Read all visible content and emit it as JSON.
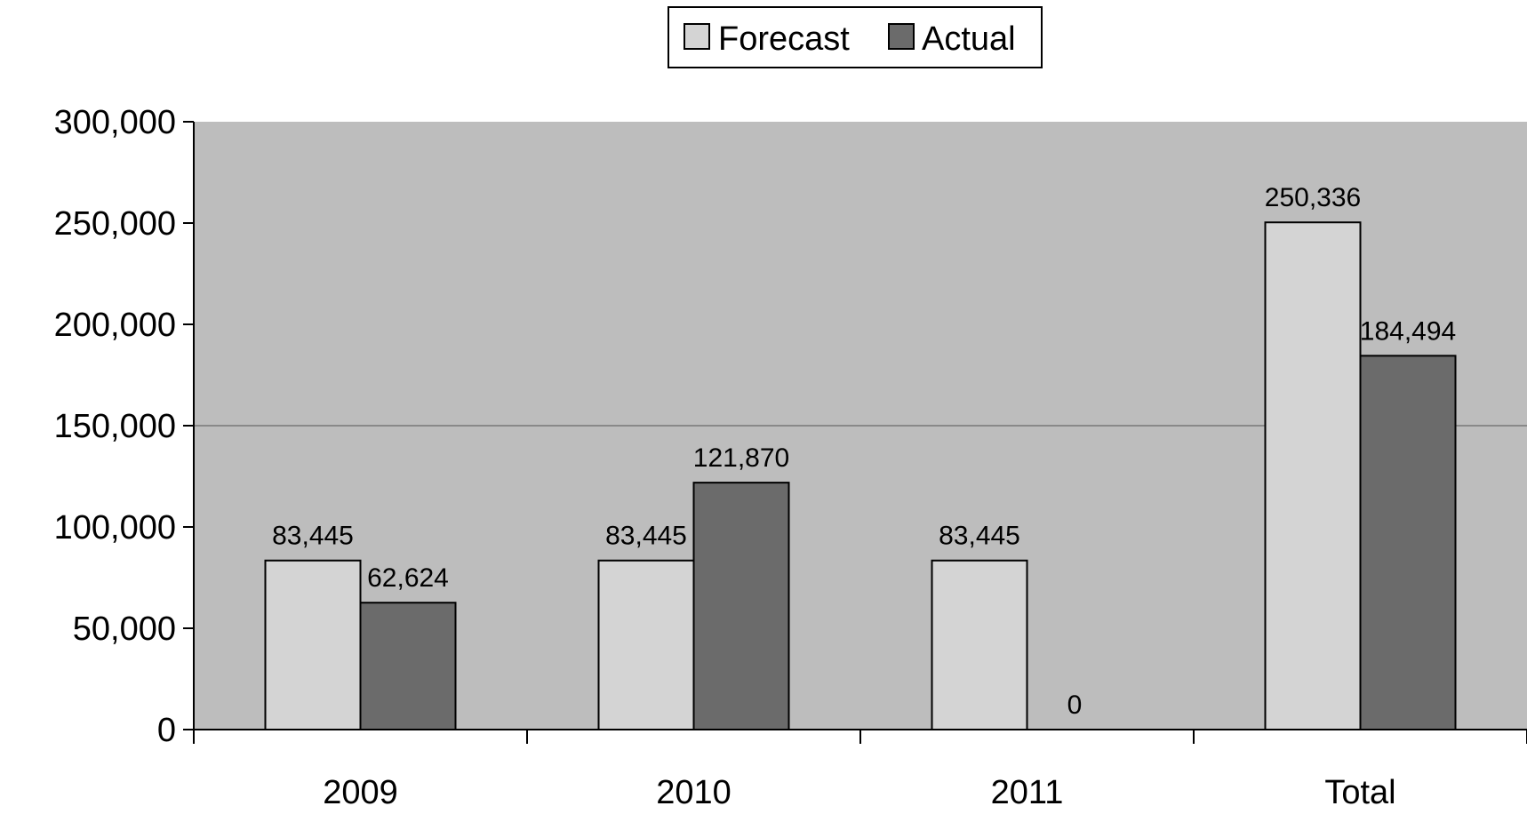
{
  "chart_data": {
    "type": "bar",
    "title": "",
    "xlabel": "",
    "ylabel": "",
    "categories": [
      "2009",
      "2010",
      "2011",
      "Total"
    ],
    "series": [
      {
        "name": "Forecast",
        "values": [
          83445,
          83445,
          83445,
          250336
        ],
        "labels": [
          "83,445",
          "83,445",
          "83,445",
          "250,336"
        ],
        "color": "#d4d4d4"
      },
      {
        "name": "Actual",
        "values": [
          62624,
          121870,
          0,
          184494
        ],
        "labels": [
          "62,624",
          "121,870",
          "0",
          "184,494"
        ],
        "color": "#6b6b6b"
      }
    ],
    "ylim": [
      0,
      300000
    ],
    "yticks": [
      0,
      50000,
      100000,
      150000,
      200000,
      250000,
      300000
    ],
    "ytick_labels": [
      "0",
      "50,000",
      "100,000",
      "150,000",
      "200,000",
      "250,000",
      "300,000"
    ],
    "gridlines": [
      150000
    ],
    "plot_background": "#bdbdbd",
    "legend_position": "top-center"
  }
}
